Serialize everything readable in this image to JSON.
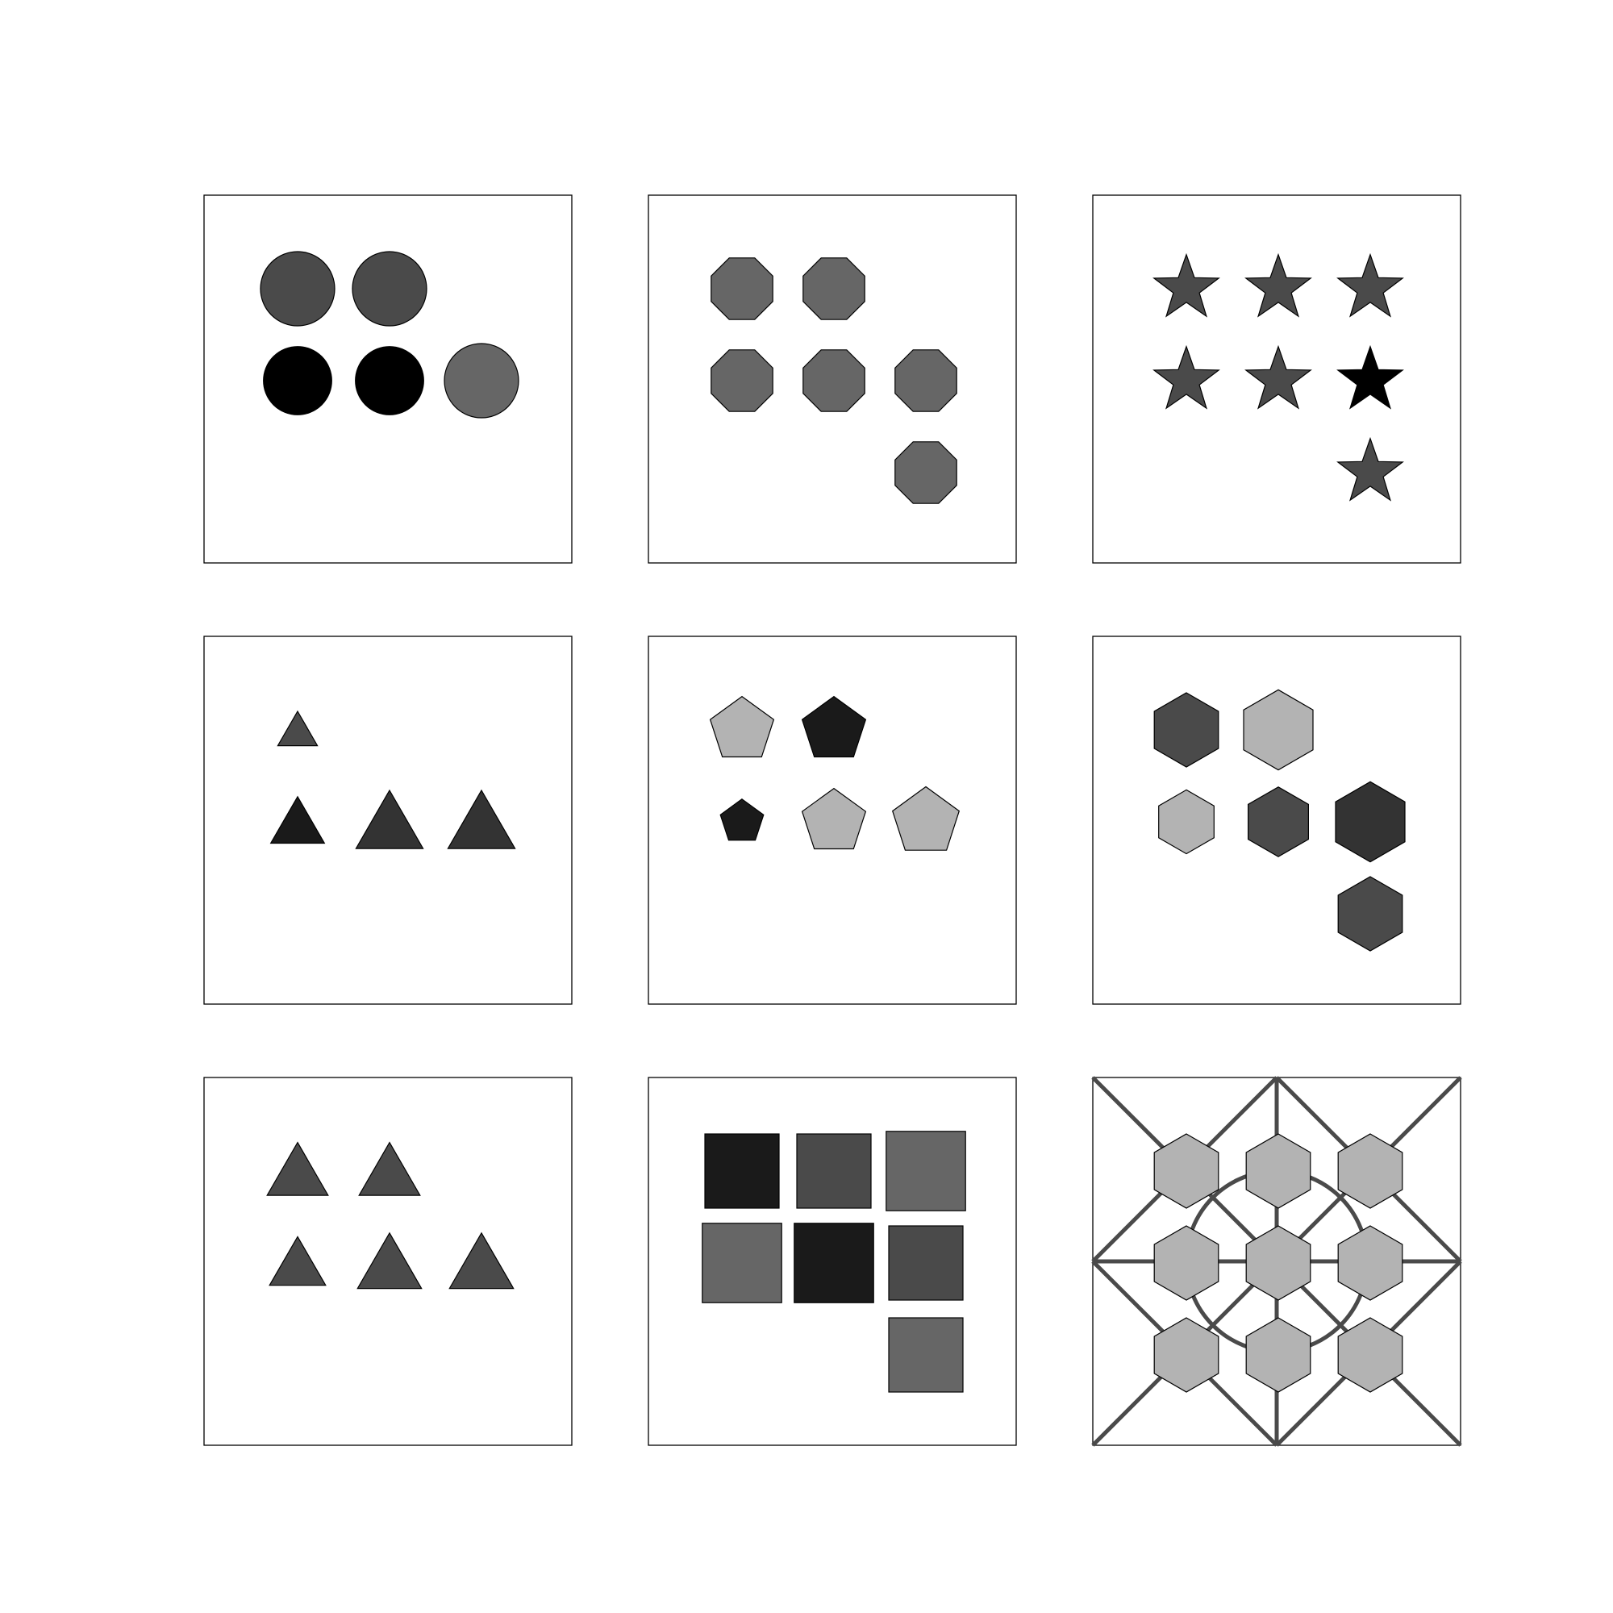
{
  "grid": {
    "rows": 3,
    "cols": 3,
    "panels": [
      {
        "shape": "circle",
        "layout": [
          2,
          3
        ],
        "items": [
          {
            "fill": "#4a4a4a",
            "scale": 1.0
          },
          {
            "fill": "#4a4a4a",
            "scale": 1.0
          },
          {
            "fill": "#000000",
            "scale": 0.92
          },
          {
            "fill": "#000000",
            "scale": 0.92
          },
          {
            "fill": "#666666",
            "scale": 1.0
          }
        ]
      },
      {
        "shape": "octagon",
        "layout": [
          2,
          3,
          1
        ],
        "items": [
          {
            "fill": "#666666",
            "scale": 1.0
          },
          {
            "fill": "#666666",
            "scale": 1.0
          },
          {
            "fill": "#666666",
            "scale": 1.0
          },
          {
            "fill": "#666666",
            "scale": 1.0
          },
          {
            "fill": "#666666",
            "scale": 1.0
          },
          {
            "fill": "#666666",
            "scale": 1.0
          }
        ]
      },
      {
        "shape": "star",
        "layout": [
          3,
          3,
          1
        ],
        "items": [
          {
            "fill": "#4a4a4a",
            "scale": 1.0
          },
          {
            "fill": "#4a4a4a",
            "scale": 1.0
          },
          {
            "fill": "#4a4a4a",
            "scale": 1.0
          },
          {
            "fill": "#4a4a4a",
            "scale": 1.0
          },
          {
            "fill": "#4a4a4a",
            "scale": 1.0
          },
          {
            "fill": "#000000",
            "scale": 1.0
          },
          {
            "fill": "#4a4a4a",
            "scale": 1.0
          }
        ]
      },
      {
        "shape": "triangle",
        "layout": [
          1,
          3
        ],
        "items": [
          {
            "fill": "#4a4a4a",
            "scale": 0.65
          },
          {
            "fill": "#1a1a1a",
            "scale": 0.88
          },
          {
            "fill": "#333333",
            "scale": 1.1
          },
          {
            "fill": "#333333",
            "scale": 1.1
          }
        ]
      },
      {
        "shape": "pentagon",
        "layout": [
          2,
          3
        ],
        "items": [
          {
            "fill": "#b3b3b3",
            "scale": 1.0
          },
          {
            "fill": "#1a1a1a",
            "scale": 1.0
          },
          {
            "fill": "#1a1a1a",
            "scale": 0.68
          },
          {
            "fill": "#b3b3b3",
            "scale": 1.0
          },
          {
            "fill": "#b3b3b3",
            "scale": 1.05
          }
        ]
      },
      {
        "shape": "hexagon",
        "layout": [
          2,
          3,
          1
        ],
        "items": [
          {
            "fill": "#4a4a4a",
            "scale": 1.0
          },
          {
            "fill": "#b3b3b3",
            "scale": 1.08
          },
          {
            "fill": "#b3b3b3",
            "scale": 0.86
          },
          {
            "fill": "#4a4a4a",
            "scale": 0.94
          },
          {
            "fill": "#333333",
            "scale": 1.08
          },
          {
            "fill": "#4a4a4a",
            "scale": 1.0
          }
        ]
      },
      {
        "shape": "triangle",
        "layout": [
          2,
          3
        ],
        "items": [
          {
            "fill": "#4a4a4a",
            "scale": 1.0
          },
          {
            "fill": "#4a4a4a",
            "scale": 1.0
          },
          {
            "fill": "#4a4a4a",
            "scale": 0.92
          },
          {
            "fill": "#4a4a4a",
            "scale": 1.05
          },
          {
            "fill": "#4a4a4a",
            "scale": 1.05
          }
        ]
      },
      {
        "shape": "square",
        "layout": [
          3,
          3,
          1
        ],
        "items": [
          {
            "fill": "#1a1a1a",
            "scale": 1.0
          },
          {
            "fill": "#4a4a4a",
            "scale": 1.0
          },
          {
            "fill": "#666666",
            "scale": 1.07
          },
          {
            "fill": "#666666",
            "scale": 1.07
          },
          {
            "fill": "#1a1a1a",
            "scale": 1.07
          },
          {
            "fill": "#4a4a4a",
            "scale": 1.0
          },
          {
            "fill": "#666666",
            "scale": 1.0
          }
        ]
      },
      {
        "shape": "hexagon",
        "layout": [
          3,
          3,
          3
        ],
        "overlay": "lattice",
        "items": [
          {
            "fill": "#b3b3b3",
            "scale": 1.0
          },
          {
            "fill": "#b3b3b3",
            "scale": 1.0
          },
          {
            "fill": "#b3b3b3",
            "scale": 1.0
          },
          {
            "fill": "#b3b3b3",
            "scale": 1.0
          },
          {
            "fill": "#b3b3b3",
            "scale": 1.0
          },
          {
            "fill": "#b3b3b3",
            "scale": 1.0
          },
          {
            "fill": "#b3b3b3",
            "scale": 1.0
          },
          {
            "fill": "#b3b3b3",
            "scale": 1.0
          },
          {
            "fill": "#b3b3b3",
            "scale": 1.0
          }
        ]
      }
    ]
  },
  "colors": {
    "panel_border": "#000000",
    "overlay_line": "#4a4a4a"
  }
}
